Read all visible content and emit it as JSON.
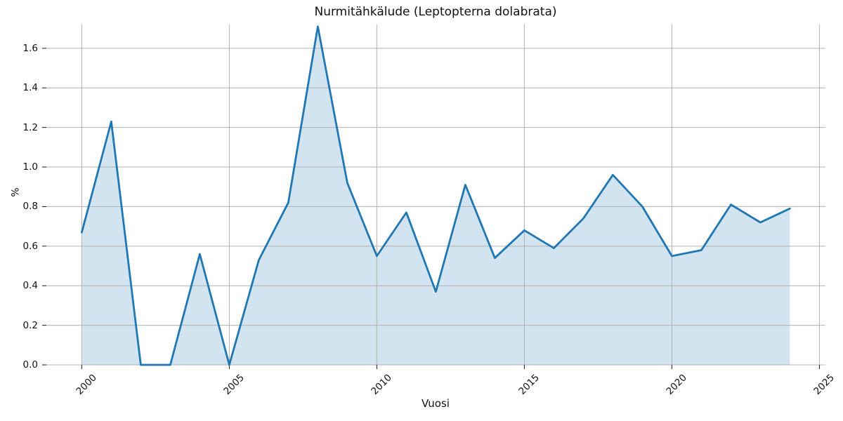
{
  "chart_data": {
    "type": "area",
    "title": "Nurmitähkälude (Leptopterna dolabrata)",
    "xlabel": "Vuosi",
    "ylabel": "%",
    "x": [
      2000,
      2001,
      2002,
      2003,
      2004,
      2005,
      2006,
      2007,
      2008,
      2009,
      2010,
      2011,
      2012,
      2013,
      2014,
      2015,
      2016,
      2017,
      2018,
      2019,
      2020,
      2021,
      2022,
      2023,
      2024
    ],
    "series": [
      {
        "name": "Nurmitähkälude",
        "values": [
          0.67,
          1.23,
          0.0,
          0.0,
          0.56,
          0.0,
          0.53,
          0.82,
          1.71,
          0.92,
          0.55,
          0.77,
          0.37,
          0.91,
          0.54,
          0.68,
          0.59,
          0.74,
          0.96,
          0.8,
          0.55,
          0.58,
          0.81,
          0.72,
          0.79
        ]
      }
    ],
    "xlim": [
      1998.8,
      2025.2
    ],
    "ylim": [
      0,
      1.72
    ],
    "xticks": [
      2000,
      2005,
      2010,
      2015,
      2020,
      2025
    ],
    "xtick_labels": [
      "2000",
      "2005",
      "2010",
      "2015",
      "2020",
      "2025"
    ],
    "yticks": [
      0.0,
      0.2,
      0.4,
      0.6,
      0.8,
      1.0,
      1.2,
      1.4,
      1.6
    ],
    "ytick_labels": [
      "0.0",
      "0.2",
      "0.4",
      "0.6",
      "0.8",
      "1.0",
      "1.2",
      "1.4",
      "1.6"
    ],
    "grid": true,
    "legend": "none",
    "line_color": "#1f77b4",
    "fill_color": "rgba(31,119,180,0.2)",
    "grid_color": "#b0b0b0",
    "tick_color": "#1a1a1a"
  }
}
